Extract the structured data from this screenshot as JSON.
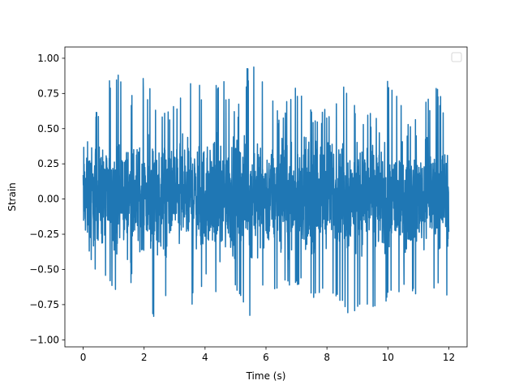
{
  "chart_data": {
    "type": "line",
    "title": "",
    "xlabel": "Time (s)",
    "ylabel": "Strain",
    "xlim": [
      -0.6,
      12.6
    ],
    "ylim": [
      -1.05,
      1.08
    ],
    "xticks": [
      0,
      2,
      4,
      6,
      8,
      10,
      12
    ],
    "xtick_labels": [
      "0",
      "2",
      "4",
      "6",
      "8",
      "10",
      "12"
    ],
    "yticks": [
      1.0,
      0.75,
      0.5,
      0.25,
      0.0,
      -0.25,
      -0.5,
      -0.75,
      -1.0
    ],
    "ytick_labels": [
      "1.00",
      "0.75",
      "0.50",
      "0.25",
      "0.00",
      "−0.25",
      "−0.50",
      "−0.75",
      "−1.00"
    ],
    "grid": false,
    "legend": {
      "placement": "top-right",
      "entries": []
    },
    "series": [
      {
        "color": "#1f77b4",
        "x_range": [
          0,
          12
        ],
        "value_range": [
          -0.96,
          1.0
        ],
        "envelope": [
          {
            "x": 0.0,
            "min": -0.42,
            "max": 0.62
          },
          {
            "x": 0.5,
            "min": -0.52,
            "max": 0.68
          },
          {
            "x": 1.0,
            "min": -0.66,
            "max": 0.95
          },
          {
            "x": 1.2,
            "min": -0.85,
            "max": 1.0
          },
          {
            "x": 1.6,
            "min": -0.6,
            "max": 0.75
          },
          {
            "x": 2.0,
            "min": -0.96,
            "max": 0.88
          },
          {
            "x": 2.6,
            "min": -0.78,
            "max": 0.6
          },
          {
            "x": 3.0,
            "min": -0.72,
            "max": 0.68
          },
          {
            "x": 3.6,
            "min": -0.75,
            "max": 0.98
          },
          {
            "x": 4.0,
            "min": -0.6,
            "max": 0.7
          },
          {
            "x": 4.5,
            "min": -0.7,
            "max": 0.92
          },
          {
            "x": 5.0,
            "min": -0.65,
            "max": 0.6
          },
          {
            "x": 5.4,
            "min": -0.92,
            "max": 0.95
          },
          {
            "x": 5.8,
            "min": -0.6,
            "max": 1.0
          },
          {
            "x": 6.4,
            "min": -0.7,
            "max": 0.62
          },
          {
            "x": 7.0,
            "min": -0.6,
            "max": 0.8
          },
          {
            "x": 7.6,
            "min": -0.75,
            "max": 0.6
          },
          {
            "x": 8.0,
            "min": -0.72,
            "max": 0.65
          },
          {
            "x": 8.6,
            "min": -0.82,
            "max": 0.9
          },
          {
            "x": 9.0,
            "min": -0.88,
            "max": 0.6
          },
          {
            "x": 9.6,
            "min": -0.76,
            "max": 0.65
          },
          {
            "x": 10.0,
            "min": -0.72,
            "max": 0.88
          },
          {
            "x": 10.6,
            "min": -0.62,
            "max": 0.6
          },
          {
            "x": 11.0,
            "min": -0.75,
            "max": 0.6
          },
          {
            "x": 11.6,
            "min": -0.7,
            "max": 0.82
          },
          {
            "x": 12.0,
            "min": -0.68,
            "max": 0.55
          }
        ]
      }
    ]
  }
}
